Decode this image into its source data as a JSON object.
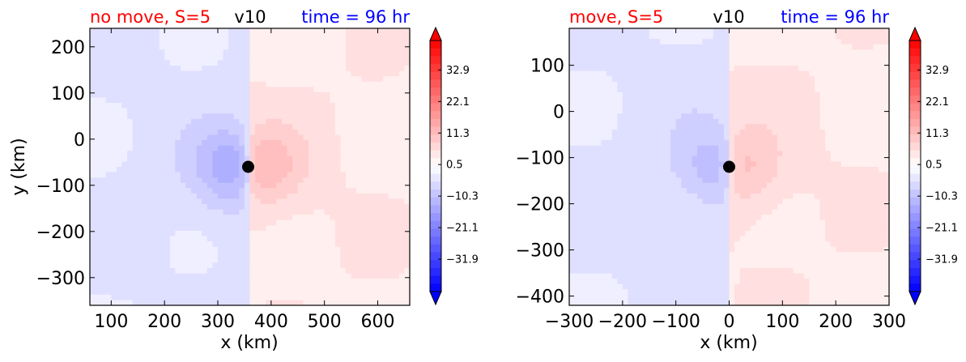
{
  "colors": {
    "negative": "#0000ff",
    "positive": "#ff0000",
    "title_left": "#ff0000",
    "title_center": "#000000",
    "title_right": "#0000ff"
  },
  "chart_data": [
    {
      "type": "heatmap",
      "title_left": "no move, S=5",
      "title_center": "v10",
      "title_right": "time = 96 hr",
      "xlabel": "x (km)",
      "ylabel": "y (km)",
      "xlim": [
        60,
        660
      ],
      "ylim": [
        -360,
        240
      ],
      "xticks": [
        100,
        200,
        300,
        400,
        500,
        600
      ],
      "yticks": [
        200,
        100,
        0,
        -100,
        -200,
        -300
      ],
      "xtick_labels": [
        "100",
        "200",
        "300",
        "400",
        "500",
        "600"
      ],
      "ytick_labels": [
        "200",
        "100",
        "0",
        "−100",
        "−200",
        "−300"
      ],
      "marker": {
        "x": 357,
        "y": -60
      },
      "vortex": {
        "x": 357,
        "y": -60,
        "peak_negative": -22,
        "peak_positive": 18,
        "background_negative": -6,
        "background_positive": 5
      },
      "colorbar": {
        "range": [
          -43,
          43
        ],
        "ticks": [
          32.9,
          22.1,
          11.3,
          0.5,
          -10.3,
          -21.1,
          -31.9
        ],
        "tick_labels": [
          "32.9",
          "22.1",
          "11.3",
          "0.5",
          "−10.3",
          "−21.1",
          "−31.9"
        ],
        "extend": "both"
      }
    },
    {
      "type": "heatmap",
      "title_left": "move, S=5",
      "title_center": "v10",
      "title_right": "time = 96 hr",
      "xlabel": "x (km)",
      "ylabel": "",
      "xlim": [
        -300,
        300
      ],
      "ylim": [
        -420,
        180
      ],
      "xticks": [
        -300,
        -200,
        -100,
        0,
        100,
        200,
        300
      ],
      "yticks": [
        100,
        0,
        -100,
        -200,
        -300,
        -400
      ],
      "xtick_labels": [
        "−300",
        "−200",
        "−100",
        "0",
        "100",
        "200",
        "300"
      ],
      "ytick_labels": [
        "100",
        "0",
        "−100",
        "−200",
        "−300",
        "−400"
      ],
      "marker": {
        "x": 0,
        "y": -120
      },
      "vortex": {
        "x": 0,
        "y": -120,
        "peak_negative": -16,
        "peak_positive": 15,
        "background_negative": -6,
        "background_positive": 5
      },
      "colorbar": {
        "range": [
          -43,
          43
        ],
        "ticks": [
          32.9,
          22.1,
          11.3,
          0.5,
          -10.3,
          -21.1,
          -31.9
        ],
        "tick_labels": [
          "32.9",
          "22.1",
          "11.3",
          "0.5",
          "−10.3",
          "−21.1",
          "−31.9"
        ],
        "extend": "both"
      }
    }
  ]
}
